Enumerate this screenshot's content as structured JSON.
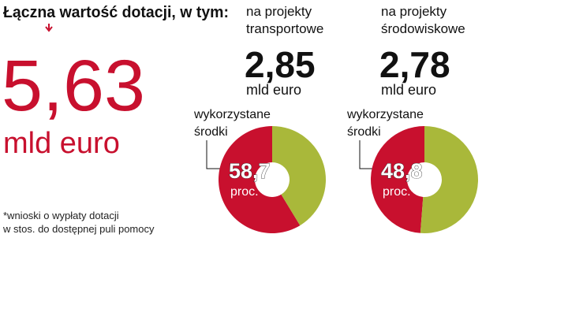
{
  "header": {
    "title": "Łączna wartość dotacji, w tym:",
    "total": "5,63",
    "total_unit": "mld euro",
    "footnote": [
      "*wnioski o wypłaty dotacji",
      "w stos. do dostępnej puli pomocy"
    ]
  },
  "chart_data": [
    {
      "type": "pie",
      "title": [
        "na projekty",
        "transportowe"
      ],
      "amount": "2,85",
      "amount_unit": "mld euro",
      "annotation": [
        "wykorzystane",
        "środki"
      ],
      "values": [
        58.7,
        41.3
      ],
      "value_labels": [
        "58,7",
        null
      ],
      "value_unit": "proc.*",
      "colors": [
        "#c8102e",
        "#a9b83a"
      ]
    },
    {
      "type": "pie",
      "title": [
        "na projekty",
        "środowiskowe"
      ],
      "amount": "2,78",
      "amount_unit": "mld euro",
      "annotation": [
        "wykorzystane",
        "środki"
      ],
      "values": [
        48.8,
        51.2
      ],
      "value_labels": [
        "48,8",
        null
      ],
      "value_unit": "proc.*",
      "colors": [
        "#c8102e",
        "#a9b83a"
      ]
    }
  ]
}
